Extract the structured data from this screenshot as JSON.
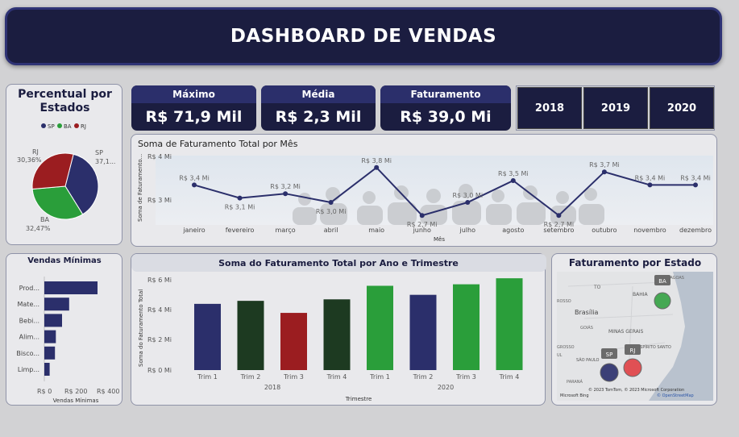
{
  "header": {
    "title": "DASHBOARD DE VENDAS"
  },
  "kpis": [
    {
      "label": "Máximo",
      "value": "R$ 71,9 Mil"
    },
    {
      "label": "Média",
      "value": "R$ 2,3 Mil"
    },
    {
      "label": "Faturamento",
      "value": "R$ 39,0 Mi"
    }
  ],
  "years": [
    "2018",
    "2019",
    "2020"
  ],
  "pie": {
    "title": "Percentual por Estados",
    "legend": [
      {
        "label": "SP",
        "color": "#2b2f6b"
      },
      {
        "label": "BA",
        "color": "#2a9e3a"
      },
      {
        "label": "RJ",
        "color": "#9b1d20"
      }
    ],
    "labels": {
      "rj": "RJ",
      "rj_pct": "30,36%",
      "sp": "SP",
      "sp_pct": "37,1...",
      "ba": "BA",
      "ba_pct": "32,47%"
    }
  },
  "min_sales": {
    "title": "Vendas Mínimas",
    "xlabel": "Vendas Mínimas",
    "ticks": [
      "R$ 0",
      "R$ 200",
      "R$ 400"
    ]
  },
  "bar_chart_title": "Soma do Faturamento Total por Ano e Trimestre",
  "map": {
    "title": "Faturamento por Estado",
    "labels": {
      "ba": "BA",
      "sp": "SP",
      "rj": "RJ",
      "to": "TO",
      "bahia": "BAHIA",
      "brasilia": "Brasília",
      "goias": "GOIÁS",
      "minas": "MINAS GERAIS",
      "espirito": "ESPÍRITO SANTO",
      "saopaulo": "SÃO PAULO",
      "parana": "PARANÁ",
      "grosso": "GROSSO",
      "rosso": "ROSSO",
      "alagoas": "ALAGOAS",
      "ul": "UL"
    },
    "attribution": "© 2023 TomTom, © 2023 Microsoft Corporation",
    "osm": "© OpenStreetMap",
    "bing": "Microsoft Bing"
  },
  "chart_data": [
    {
      "type": "line",
      "title": "Soma de Faturamento Total por Mês",
      "xlabel": "Mês",
      "ylabel": "Soma de Faturamento...",
      "yticks": [
        "R$ 4 Mi",
        "R$ 3 Mi"
      ],
      "ylim": [
        2.5,
        4.0
      ],
      "categories": [
        "janeiro",
        "fevereiro",
        "março",
        "abril",
        "maio",
        "junho",
        "julho",
        "agosto",
        "setembro",
        "outubro",
        "novembro",
        "dezembro"
      ],
      "values": [
        3.4,
        3.1,
        3.2,
        3.0,
        3.8,
        2.7,
        3.0,
        3.5,
        2.7,
        3.7,
        3.4,
        3.4
      ],
      "data_labels": [
        "R$ 3,4 Mi",
        "R$ 3,1 Mi",
        "R$ 3,2 Mi",
        "R$ 3,0 Mi",
        "R$ 3,8 Mi",
        "R$ 2,7 Mi",
        "R$ 3,0 Mi",
        "R$ 3,5 Mi",
        "R$ 2,7 Mi",
        "R$ 3,7 Mi",
        "R$ 3,4 Mi",
        "R$ 3,4 Mi"
      ],
      "color": "#2b2f6b"
    },
    {
      "type": "bar",
      "title": "Soma do Faturamento Total por Ano e Trimestre",
      "xlabel": "Trimestre",
      "ylabel": "Soma do Faturamento Total",
      "yticks": [
        "R$ 6 Mi",
        "R$ 4 Mi",
        "R$ 2 Mi",
        "R$ 0 Mi"
      ],
      "ylim": [
        0,
        6
      ],
      "categories": [
        "Trim 1",
        "Trim 2",
        "Trim 3",
        "Trim 4",
        "Trim 1",
        "Trim 2",
        "Trim 3",
        "Trim 4"
      ],
      "groups": [
        "2018",
        "2020"
      ],
      "values": [
        4.4,
        4.6,
        3.8,
        4.7,
        5.6,
        5.0,
        5.7,
        6.1
      ],
      "colors": [
        "#2b2f6b",
        "#1d3a21",
        "#9b1d20",
        "#1d3a21",
        "#2a9e3a",
        "#2b2f6b",
        "#2a9e3a",
        "#2a9e3a"
      ]
    },
    {
      "type": "pie",
      "categories": [
        "SP",
        "BA",
        "RJ"
      ],
      "values": [
        37.17,
        32.47,
        30.36
      ],
      "colors": [
        "#2b2f6b",
        "#2a9e3a",
        "#9b1d20"
      ]
    },
    {
      "type": "bar",
      "orientation": "horizontal",
      "categories": [
        "Prod...",
        "Mate...",
        "Bebi...",
        "Alim...",
        "Bisco...",
        "Limp..."
      ],
      "values": [
        300,
        140,
        100,
        65,
        60,
        30
      ],
      "xlim": [
        0,
        400
      ],
      "color": "#2b2f6b"
    }
  ]
}
